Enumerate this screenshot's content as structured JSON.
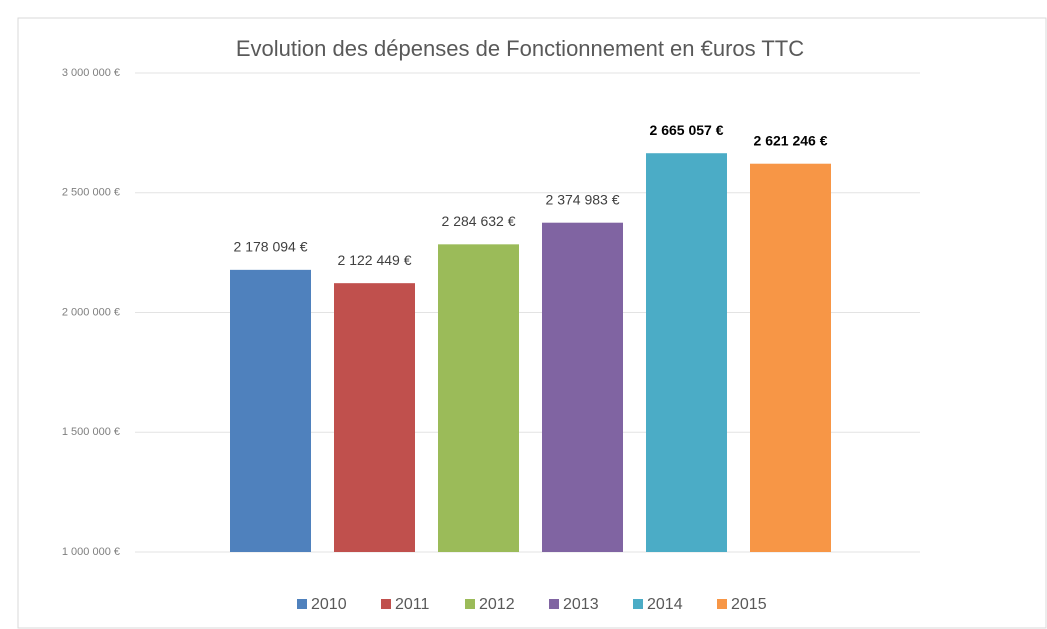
{
  "chart_data": {
    "type": "bar",
    "title": "Evolution des dépenses de Fonctionnement en €uros TTC",
    "categories": [
      null
    ],
    "series": [
      {
        "name": "2010",
        "color": "#4f81bd",
        "values": [
          2178094
        ],
        "value_labels": [
          "2 178 094 €"
        ],
        "label_bold": false
      },
      {
        "name": "2011",
        "color": "#c0504d",
        "values": [
          2122449
        ],
        "value_labels": [
          "2 122 449 €"
        ],
        "label_bold": false
      },
      {
        "name": "2012",
        "color": "#9bbb59",
        "values": [
          2284632
        ],
        "value_labels": [
          "2 284 632 €"
        ],
        "label_bold": false
      },
      {
        "name": "2013",
        "color": "#8064a2",
        "values": [
          2374983
        ],
        "value_labels": [
          "2 374 983 €"
        ],
        "label_bold": false
      },
      {
        "name": "2014",
        "color": "#4bacc6",
        "values": [
          2665057
        ],
        "value_labels": [
          "2 665 057 €"
        ],
        "label_bold": true
      },
      {
        "name": "2015",
        "color": "#f79646",
        "values": [
          2621246
        ],
        "value_labels": [
          "2 621 246 €"
        ],
        "label_bold": true
      }
    ],
    "ylim": [
      1000000,
      3000000
    ],
    "yticks": [
      {
        "value": 1000000,
        "label": "1 000 000 €"
      },
      {
        "value": 1500000,
        "label": "1 500 000 €"
      },
      {
        "value": 2000000,
        "label": "2 000 000 €"
      },
      {
        "value": 2500000,
        "label": "2 500 000 €"
      },
      {
        "value": 3000000,
        "label": "3 000 000 €"
      }
    ],
    "grid": true,
    "legend": "bottom"
  }
}
